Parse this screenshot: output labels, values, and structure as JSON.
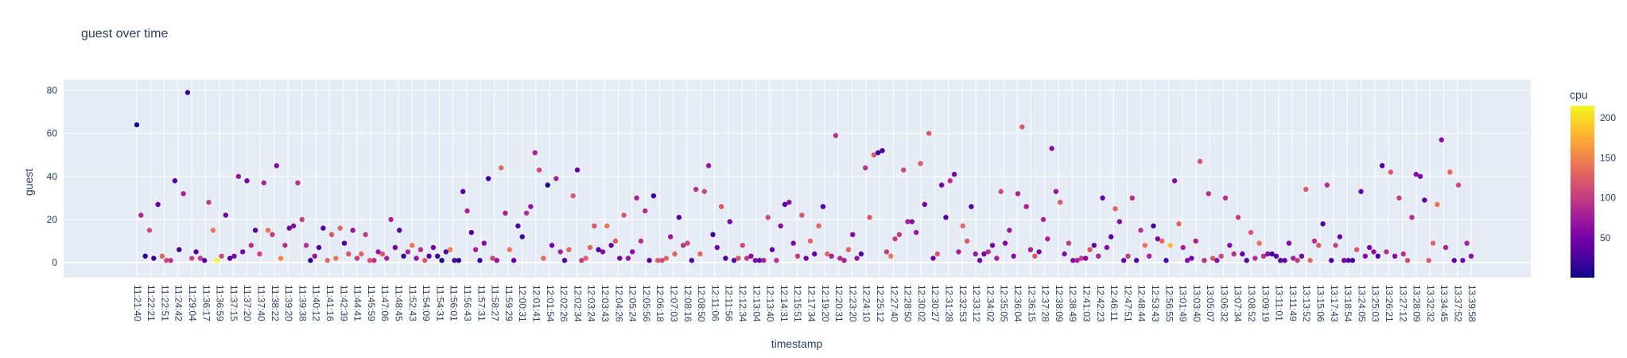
{
  "chart_data": {
    "type": "scatter",
    "title": "guest over time",
    "xlabel": "timestamp",
    "ylabel": "guest",
    "ylim": [
      -7,
      85
    ],
    "y_ticks": [
      0,
      20,
      40,
      60,
      80
    ],
    "x_tick_labels": [
      "11:21:40",
      "11:22:21",
      "11:22:51",
      "11:24:42",
      "11:29:04",
      "11:36:17",
      "11:36:59",
      "11:37:15",
      "11:37:20",
      "11:37:40",
      "11:38:22",
      "11:39:20",
      "11:39:38",
      "11:40:12",
      "11:41:16",
      "11:42:39",
      "11:44:41",
      "11:45:59",
      "11:47:06",
      "11:48:45",
      "11:52:43",
      "11:54:09",
      "11:54:31",
      "11:56:01",
      "11:56:43",
      "11:57:31",
      "11:58:27",
      "11:59:29",
      "12:00:31",
      "12:01:41",
      "12:01:54",
      "12:02:26",
      "12:02:34",
      "12:03:24",
      "12:03:43",
      "12:04:26",
      "12:05:24",
      "12:05:56",
      "12:06:18",
      "12:07:03",
      "12:08:16",
      "12:08:50",
      "12:11:06",
      "12:11:56",
      "12:12:34",
      "12:13:04",
      "12:13:40",
      "12:14:31",
      "12:15:51",
      "12:17:34",
      "12:19:20",
      "12:20:31",
      "12:23:20",
      "12:24:10",
      "12:25:12",
      "12:27:40",
      "12:28:50",
      "12:30:02",
      "12:30:27",
      "12:31:28",
      "12:32:53",
      "12:33:12",
      "12:34:02",
      "12:35:05",
      "12:36:04",
      "12:36:15",
      "12:37:28",
      "12:38:09",
      "12:38:49",
      "12:41:03",
      "12:42:23",
      "12:46:11",
      "12:47:51",
      "12:48:44",
      "12:53:43",
      "12:56:55",
      "13:01:49",
      "13:03:40",
      "13:05:07",
      "13:06:32",
      "13:07:34",
      "13:08:52",
      "13:09:19",
      "13:11:01",
      "13:11:49",
      "13:13:52",
      "13:15:06",
      "13:17:43",
      "13:18:54",
      "13:24:05",
      "13:25:03",
      "13:26:21",
      "13:27:12",
      "13:28:09",
      "13:32:32",
      "13:34:45",
      "13:37:52",
      "13:39:58"
    ],
    "color_label": "cpu",
    "color_range": [
      0,
      215
    ],
    "color_ticks": [
      50,
      100,
      150,
      200
    ],
    "colorscale": [
      "#0d0887",
      "#46039f",
      "#7201a8",
      "#9c179e",
      "#bd3786",
      "#d8576b",
      "#ed7953",
      "#fb9f3a",
      "#fdca26",
      "#f0f921"
    ],
    "points": [
      [
        0,
        64,
        5
      ],
      [
        1,
        22,
        85
      ],
      [
        2,
        3,
        10
      ],
      [
        3,
        15,
        115
      ],
      [
        4,
        2,
        20
      ],
      [
        5,
        27,
        40
      ],
      [
        6,
        3,
        130
      ],
      [
        7,
        1,
        110
      ],
      [
        8,
        1,
        95
      ],
      [
        9,
        38,
        30
      ],
      [
        10,
        6,
        20
      ],
      [
        11,
        32,
        80
      ],
      [
        12,
        79,
        20
      ],
      [
        13,
        2,
        110
      ],
      [
        14,
        5,
        30
      ],
      [
        15,
        2,
        100
      ],
      [
        16,
        1,
        30
      ],
      [
        17,
        28,
        100
      ],
      [
        18,
        15,
        140
      ],
      [
        19,
        1,
        215
      ],
      [
        20,
        3,
        110
      ],
      [
        21,
        22,
        50
      ],
      [
        22,
        2,
        30
      ],
      [
        23,
        3,
        55
      ],
      [
        24,
        40,
        70
      ],
      [
        25,
        5,
        50
      ],
      [
        26,
        38,
        50
      ],
      [
        27,
        8,
        90
      ],
      [
        28,
        15,
        30
      ],
      [
        29,
        4,
        105
      ],
      [
        30,
        37,
        80
      ],
      [
        31,
        15,
        140
      ],
      [
        32,
        13,
        100
      ],
      [
        33,
        45,
        60
      ],
      [
        34,
        2,
        150
      ],
      [
        35,
        8,
        90
      ],
      [
        36,
        16,
        50
      ],
      [
        37,
        17,
        60
      ],
      [
        38,
        37,
        90
      ],
      [
        39,
        20,
        100
      ],
      [
        40,
        8,
        90
      ],
      [
        41,
        1,
        10
      ],
      [
        42,
        3,
        70
      ],
      [
        43,
        7,
        30
      ],
      [
        44,
        16,
        30
      ],
      [
        45,
        1,
        130
      ],
      [
        46,
        13,
        120
      ],
      [
        47,
        2,
        140
      ],
      [
        48,
        16,
        130
      ],
      [
        49,
        9,
        30
      ],
      [
        50,
        4,
        120
      ],
      [
        51,
        15,
        70
      ],
      [
        52,
        2,
        100
      ],
      [
        53,
        4,
        130
      ],
      [
        54,
        13,
        100
      ],
      [
        55,
        1,
        120
      ],
      [
        56,
        1,
        90
      ],
      [
        57,
        5,
        70
      ],
      [
        58,
        4,
        120
      ],
      [
        59,
        2,
        80
      ],
      [
        60,
        20,
        80
      ],
      [
        61,
        7,
        50
      ],
      [
        62,
        15,
        30
      ],
      [
        63,
        3,
        20
      ],
      [
        64,
        5,
        80
      ],
      [
        65,
        8,
        140
      ],
      [
        66,
        2,
        70
      ],
      [
        67,
        6,
        90
      ],
      [
        68,
        1,
        120
      ],
      [
        69,
        3,
        30
      ],
      [
        70,
        7,
        50
      ],
      [
        71,
        3,
        20
      ],
      [
        72,
        1,
        10
      ],
      [
        73,
        5,
        30
      ],
      [
        74,
        6,
        150
      ],
      [
        75,
        1,
        30
      ],
      [
        76,
        1,
        10
      ],
      [
        77,
        33,
        30
      ],
      [
        78,
        24,
        80
      ],
      [
        79,
        14,
        30
      ],
      [
        80,
        6,
        80
      ],
      [
        81,
        1,
        20
      ],
      [
        82,
        9,
        60
      ],
      [
        83,
        39,
        20
      ],
      [
        84,
        2,
        110
      ],
      [
        85,
        1,
        70
      ],
      [
        86,
        44,
        130
      ],
      [
        87,
        23,
        80
      ],
      [
        88,
        6,
        140
      ],
      [
        89,
        1,
        40
      ],
      [
        90,
        17,
        30
      ],
      [
        91,
        12,
        20
      ],
      [
        92,
        23,
        90
      ],
      [
        93,
        26,
        70
      ],
      [
        94,
        51,
        80
      ],
      [
        95,
        43,
        110
      ],
      [
        96,
        2,
        130
      ],
      [
        97,
        36,
        10
      ],
      [
        98,
        8,
        50
      ],
      [
        99,
        39,
        80
      ],
      [
        100,
        5,
        80
      ],
      [
        101,
        1,
        30
      ],
      [
        102,
        6,
        130
      ],
      [
        103,
        31,
        120
      ],
      [
        104,
        43,
        40
      ],
      [
        105,
        1,
        100
      ],
      [
        106,
        2,
        130
      ],
      [
        107,
        7,
        130
      ],
      [
        108,
        17,
        120
      ],
      [
        109,
        6,
        30
      ],
      [
        110,
        5,
        60
      ],
      [
        111,
        17,
        140
      ],
      [
        112,
        8,
        40
      ],
      [
        113,
        10,
        120
      ],
      [
        114,
        2,
        50
      ],
      [
        115,
        22,
        120
      ],
      [
        116,
        2,
        70
      ],
      [
        117,
        5,
        60
      ],
      [
        118,
        30,
        80
      ],
      [
        119,
        10,
        90
      ],
      [
        120,
        24,
        90
      ],
      [
        121,
        1,
        30
      ],
      [
        122,
        31,
        20
      ],
      [
        123,
        1,
        120
      ],
      [
        124,
        1,
        110
      ],
      [
        125,
        2,
        130
      ],
      [
        126,
        12,
        70
      ],
      [
        127,
        4,
        130
      ],
      [
        128,
        21,
        30
      ],
      [
        129,
        8,
        90
      ],
      [
        130,
        9,
        110
      ],
      [
        131,
        1,
        30
      ],
      [
        132,
        34,
        90
      ],
      [
        133,
        4,
        130
      ],
      [
        134,
        33,
        110
      ],
      [
        135,
        45,
        70
      ],
      [
        136,
        13,
        20
      ],
      [
        137,
        7,
        50
      ],
      [
        138,
        26,
        120
      ],
      [
        139,
        2,
        30
      ],
      [
        140,
        19,
        50
      ],
      [
        141,
        1,
        30
      ],
      [
        142,
        2,
        120
      ],
      [
        143,
        8,
        110
      ],
      [
        144,
        2,
        100
      ],
      [
        145,
        3,
        60
      ],
      [
        146,
        1,
        60
      ],
      [
        147,
        1,
        30
      ],
      [
        148,
        1,
        80
      ],
      [
        149,
        21,
        110
      ],
      [
        150,
        6,
        40
      ],
      [
        151,
        1,
        90
      ],
      [
        152,
        17,
        60
      ],
      [
        153,
        27,
        30
      ],
      [
        154,
        28,
        60
      ],
      [
        155,
        9,
        60
      ],
      [
        156,
        3,
        100
      ],
      [
        157,
        22,
        120
      ],
      [
        158,
        2,
        50
      ],
      [
        159,
        10,
        130
      ],
      [
        160,
        4,
        40
      ],
      [
        161,
        17,
        130
      ],
      [
        162,
        26,
        30
      ],
      [
        163,
        4,
        130
      ],
      [
        164,
        3,
        80
      ],
      [
        165,
        59,
        90
      ],
      [
        166,
        2,
        90
      ],
      [
        167,
        1,
        80
      ],
      [
        168,
        6,
        130
      ],
      [
        169,
        13,
        60
      ],
      [
        170,
        2,
        70
      ],
      [
        171,
        4,
        30
      ],
      [
        172,
        44,
        90
      ],
      [
        173,
        21,
        120
      ],
      [
        174,
        50,
        120
      ],
      [
        175,
        51,
        20
      ],
      [
        176,
        52,
        30
      ],
      [
        177,
        5,
        100
      ],
      [
        178,
        3,
        140
      ],
      [
        179,
        11,
        100
      ],
      [
        180,
        13,
        100
      ],
      [
        181,
        43,
        110
      ],
      [
        182,
        19,
        80
      ],
      [
        183,
        19,
        60
      ],
      [
        184,
        14,
        70
      ],
      [
        185,
        46,
        120
      ],
      [
        186,
        27,
        50
      ],
      [
        187,
        60,
        120
      ],
      [
        188,
        2,
        50
      ],
      [
        189,
        4,
        120
      ],
      [
        190,
        36,
        50
      ],
      [
        191,
        21,
        30
      ],
      [
        192,
        38,
        90
      ],
      [
        193,
        41,
        50
      ],
      [
        194,
        5,
        80
      ],
      [
        195,
        17,
        130
      ],
      [
        196,
        10,
        120
      ],
      [
        197,
        26,
        30
      ],
      [
        198,
        4,
        70
      ],
      [
        199,
        1,
        40
      ],
      [
        200,
        4,
        50
      ],
      [
        201,
        5,
        90
      ],
      [
        202,
        8,
        50
      ],
      [
        203,
        2,
        80
      ],
      [
        204,
        33,
        110
      ],
      [
        205,
        9,
        60
      ],
      [
        206,
        15,
        70
      ],
      [
        207,
        3,
        60
      ],
      [
        208,
        32,
        80
      ],
      [
        209,
        63,
        120
      ],
      [
        210,
        26,
        80
      ],
      [
        211,
        6,
        80
      ],
      [
        212,
        3,
        120
      ],
      [
        213,
        5,
        50
      ],
      [
        214,
        20,
        80
      ],
      [
        215,
        11,
        80
      ],
      [
        216,
        53,
        60
      ],
      [
        217,
        33,
        70
      ],
      [
        218,
        28,
        120
      ],
      [
        219,
        4,
        60
      ],
      [
        220,
        9,
        100
      ],
      [
        221,
        1,
        60
      ],
      [
        222,
        1,
        80
      ],
      [
        223,
        2,
        100
      ],
      [
        224,
        2,
        60
      ],
      [
        225,
        6,
        120
      ],
      [
        226,
        8,
        40
      ],
      [
        227,
        3,
        80
      ],
      [
        228,
        30,
        40
      ],
      [
        229,
        7,
        60
      ],
      [
        230,
        12,
        30
      ],
      [
        231,
        25,
        130
      ],
      [
        232,
        19,
        60
      ],
      [
        233,
        1,
        40
      ],
      [
        234,
        3,
        100
      ],
      [
        235,
        30,
        90
      ],
      [
        236,
        1,
        30
      ],
      [
        237,
        15,
        90
      ],
      [
        238,
        8,
        140
      ],
      [
        239,
        3,
        80
      ],
      [
        240,
        17,
        20
      ],
      [
        241,
        11,
        50
      ],
      [
        242,
        10,
        130
      ],
      [
        243,
        1,
        30
      ],
      [
        244,
        8,
        180
      ],
      [
        245,
        38,
        60
      ],
      [
        246,
        18,
        130
      ],
      [
        247,
        7,
        80
      ],
      [
        248,
        1,
        60
      ],
      [
        249,
        2,
        50
      ],
      [
        250,
        10,
        80
      ],
      [
        251,
        47,
        120
      ],
      [
        252,
        1,
        90
      ],
      [
        253,
        32,
        90
      ],
      [
        254,
        2,
        120
      ],
      [
        255,
        1,
        60
      ],
      [
        256,
        3,
        110
      ],
      [
        257,
        30,
        90
      ],
      [
        258,
        8,
        60
      ],
      [
        259,
        4,
        90
      ],
      [
        260,
        21,
        100
      ],
      [
        261,
        4,
        40
      ],
      [
        262,
        1,
        30
      ],
      [
        263,
        14,
        120
      ],
      [
        264,
        2,
        90
      ],
      [
        265,
        9,
        140
      ],
      [
        266,
        3,
        90
      ],
      [
        267,
        4,
        60
      ],
      [
        268,
        4,
        20
      ],
      [
        269,
        3,
        40
      ],
      [
        270,
        1,
        30
      ],
      [
        271,
        1,
        40
      ],
      [
        272,
        9,
        60
      ],
      [
        273,
        2,
        80
      ],
      [
        274,
        1,
        100
      ],
      [
        275,
        3,
        50
      ],
      [
        276,
        34,
        120
      ],
      [
        277,
        1,
        130
      ],
      [
        278,
        10,
        90
      ],
      [
        279,
        8,
        120
      ],
      [
        280,
        18,
        30
      ],
      [
        281,
        36,
        90
      ],
      [
        282,
        1,
        30
      ],
      [
        283,
        8,
        100
      ],
      [
        284,
        12,
        40
      ],
      [
        285,
        1,
        50
      ],
      [
        286,
        1,
        30
      ],
      [
        287,
        1,
        20
      ],
      [
        288,
        6,
        120
      ],
      [
        289,
        33,
        40
      ],
      [
        290,
        3,
        60
      ],
      [
        291,
        7,
        50
      ],
      [
        292,
        5,
        60
      ],
      [
        293,
        3,
        30
      ],
      [
        294,
        45,
        30
      ],
      [
        295,
        5,
        90
      ],
      [
        296,
        42,
        120
      ],
      [
        297,
        3,
        60
      ],
      [
        298,
        30,
        100
      ],
      [
        299,
        4,
        90
      ],
      [
        300,
        1,
        110
      ],
      [
        301,
        21,
        90
      ],
      [
        302,
        41,
        60
      ],
      [
        303,
        40,
        60
      ],
      [
        304,
        29,
        40
      ],
      [
        305,
        1,
        120
      ],
      [
        306,
        9,
        130
      ],
      [
        307,
        27,
        140
      ],
      [
        308,
        57,
        60
      ],
      [
        309,
        7,
        80
      ],
      [
        310,
        42,
        130
      ],
      [
        311,
        1,
        40
      ],
      [
        312,
        36,
        110
      ],
      [
        313,
        1,
        50
      ],
      [
        314,
        9,
        80
      ],
      [
        315,
        3,
        60
      ]
    ]
  }
}
